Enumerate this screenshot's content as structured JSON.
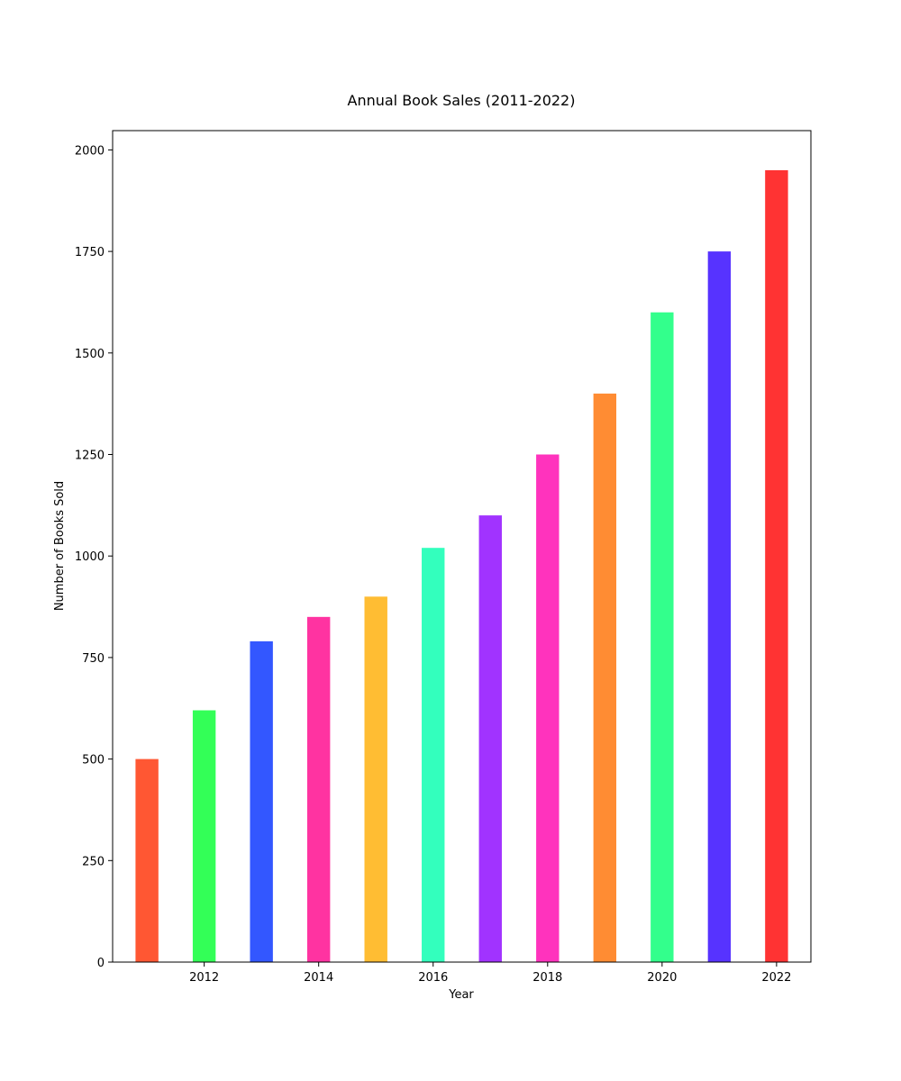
{
  "chart_data": {
    "type": "bar",
    "title": "Annual Book Sales (2011-2022)",
    "xlabel": "Year",
    "ylabel": "Number of Books Sold",
    "categories": [
      2011,
      2012,
      2013,
      2014,
      2015,
      2016,
      2017,
      2018,
      2019,
      2020,
      2021,
      2022
    ],
    "values": [
      500,
      620,
      790,
      850,
      900,
      1020,
      1100,
      1250,
      1400,
      1600,
      1750,
      1950
    ],
    "colors": [
      "#FF5733",
      "#33FF57",
      "#3357FF",
      "#FF33A1",
      "#FFBD33",
      "#33FFBD",
      "#A133FF",
      "#FF33BD",
      "#FF8C33",
      "#33FF8C",
      "#5733FF",
      "#FF3333"
    ],
    "xlim": [
      2010.4,
      2022.6
    ],
    "ylim": [
      0,
      2047.5
    ],
    "xticks": [
      2012,
      2014,
      2016,
      2018,
      2020,
      2022
    ],
    "yticks": [
      0,
      250,
      500,
      750,
      1000,
      1250,
      1500,
      1750,
      2000
    ],
    "bar_width_years": 0.4,
    "grid": false,
    "legend": "none"
  }
}
